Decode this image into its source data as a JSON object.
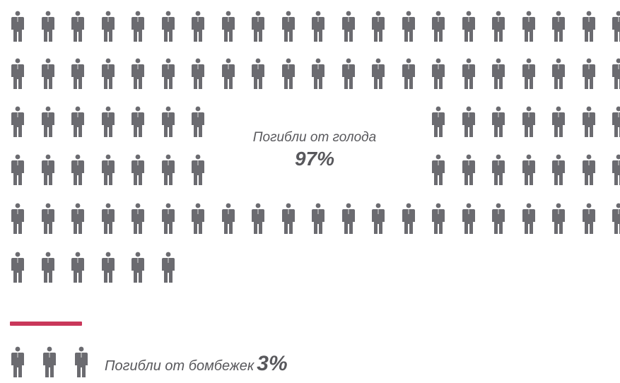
{
  "chart_data": {
    "type": "pictogram",
    "categories": [
      "Погибли от голода",
      "Погибли от бомбежек"
    ],
    "values": [
      97,
      3
    ],
    "unit": "%",
    "icon": "person-icon",
    "icon_color": "#6b6b70",
    "divider_color": "#c9375a",
    "labels": [
      {
        "category": "Погибли от голода",
        "value": "97%"
      },
      {
        "category": "Погибли от бомбежек",
        "value": "3%"
      }
    ]
  }
}
